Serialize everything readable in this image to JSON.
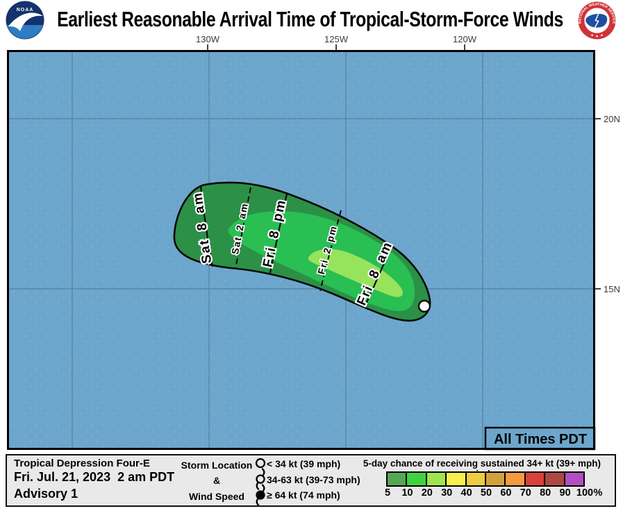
{
  "header": {
    "title": "Earliest Reasonable Arrival Time of Tropical-Storm-Force Winds",
    "noaa_label": "NOAA",
    "nws_ring_label": "NATIONAL WEATHER SERVICE"
  },
  "map": {
    "lon_ticks": [
      "130W",
      "125W",
      "120W"
    ],
    "lat_ticks": [
      "20N",
      "15N"
    ],
    "all_times_label": "All Times PDT",
    "isochrones": [
      {
        "label": "Sat 8 am",
        "style": "solid"
      },
      {
        "label": "Sat 2 am",
        "style": "dashed"
      },
      {
        "label": "Fri 8 pm",
        "style": "solid"
      },
      {
        "label": "Fri 2 pm",
        "style": "dashed"
      },
      {
        "label": "Fri 8 am",
        "style": "solid"
      }
    ],
    "colors": {
      "ocean": "#6da6cc",
      "arrival_band_outer": "#2c9047",
      "arrival_band_mid": "#29bf53",
      "arrival_band_inner": "#97e35c"
    }
  },
  "info": {
    "storm_name": "Tropical Depression Four-E",
    "issued": "Fri. Jul. 21, 2023  2 am PDT",
    "advisory": "Advisory 1"
  },
  "symbol_key": {
    "header_line1": "Storm Location",
    "header_line2": "&",
    "header_line3": "Wind Speed",
    "items": [
      {
        "icon": "open-circle",
        "label": "< 34 kt (39 mph)"
      },
      {
        "icon": "tropical-storm",
        "label": "34-63 kt (39-73 mph)"
      },
      {
        "icon": "hurricane",
        "label": "≥ 64 kt (74 mph)"
      }
    ]
  },
  "probability_scale": {
    "title": "5-day chance of receiving sustained 34+ kt (39+ mph) winds",
    "labels": [
      "5",
      "10",
      "20",
      "30",
      "40",
      "50",
      "60",
      "70",
      "80",
      "90",
      "100"
    ],
    "unit": "%",
    "colors": [
      "#55a755",
      "#3fd23f",
      "#9ee54f",
      "#f7ef4e",
      "#eecb43",
      "#cfa23e",
      "#f49a3f",
      "#d9403a",
      "#ad4742",
      "#b14fc0"
    ]
  }
}
